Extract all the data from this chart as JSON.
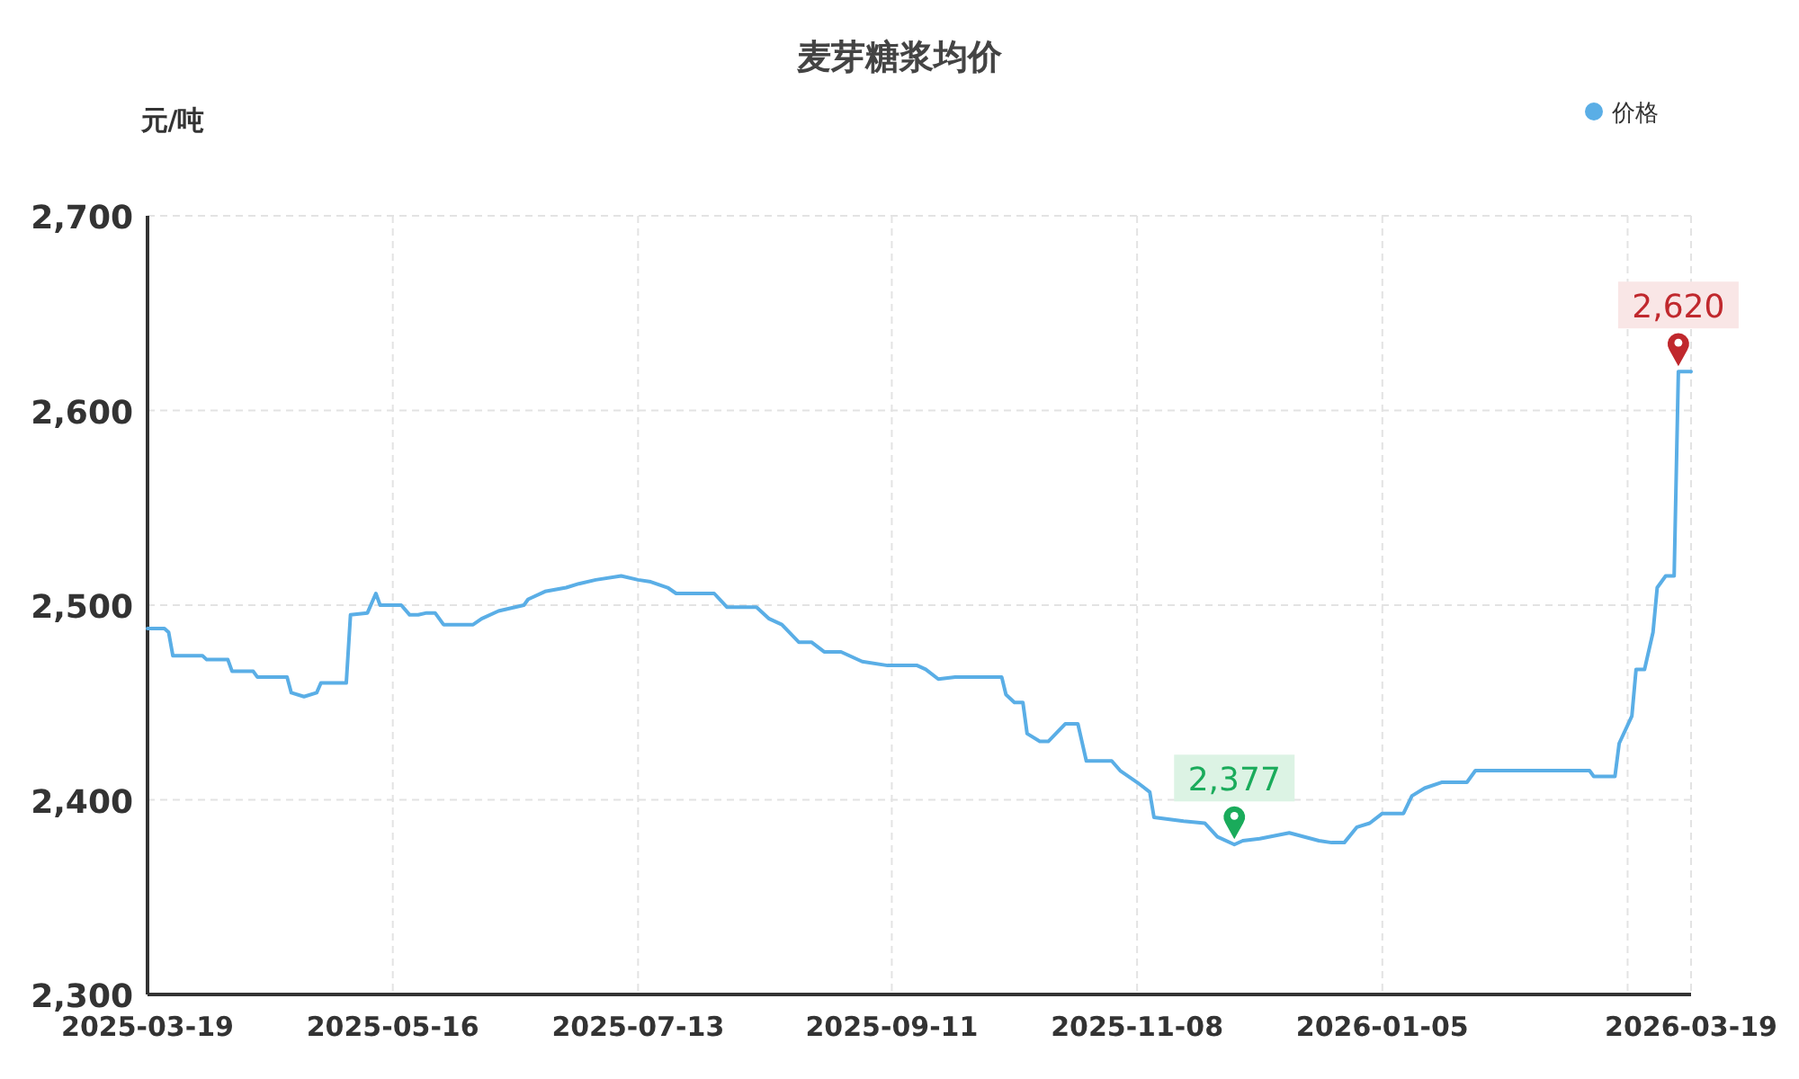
{
  "chart_data": {
    "type": "line",
    "title": "麦芽糖浆均价",
    "ylabel": "元/吨",
    "legend": "top right",
    "grid": true,
    "xlim": [
      "2025-03-19",
      "2026-03-19"
    ],
    "xticks": [
      {
        "value": "2025-03-19",
        "label": "2025-03-19"
      },
      {
        "value": "2025-05-16",
        "label": "2025-05-16"
      },
      {
        "value": "2025-07-13",
        "label": "2025-07-13"
      },
      {
        "value": "2025-09-11",
        "label": "2025-09-11"
      },
      {
        "value": "2025-11-08",
        "label": "2025-11-08"
      },
      {
        "value": "2026-01-05",
        "label": "2026-01-05"
      },
      {
        "value": "2026-03-04",
        "label": null
      },
      {
        "value": "2026-03-19",
        "label": "2026-03-19"
      }
    ],
    "ylim": [
      2300,
      2700
    ],
    "yticks": [
      {
        "value": 2300,
        "label": "2,300"
      },
      {
        "value": 2400,
        "label": "2,400"
      },
      {
        "value": 2500,
        "label": "2,500"
      },
      {
        "value": 2600,
        "label": "2,600"
      },
      {
        "value": 2700,
        "label": "2,700"
      }
    ],
    "x": [
      "2025-03-19",
      "2025-03-23",
      "2025-03-24",
      "2025-03-25",
      "2025-04-01",
      "2025-04-02",
      "2025-04-07",
      "2025-04-08",
      "2025-04-13",
      "2025-04-14",
      "2025-04-21",
      "2025-04-22",
      "2025-04-25",
      "2025-04-28",
      "2025-04-29",
      "2025-05-05",
      "2025-05-06",
      "2025-05-10",
      "2025-05-12",
      "2025-05-13",
      "2025-05-18",
      "2025-05-20",
      "2025-05-22",
      "2025-05-24",
      "2025-05-26",
      "2025-05-28",
      "2025-06-04",
      "2025-06-06",
      "2025-06-10",
      "2025-06-16",
      "2025-06-17",
      "2025-06-21",
      "2025-06-26",
      "2025-06-29",
      "2025-07-03",
      "2025-07-09",
      "2025-07-13",
      "2025-07-16",
      "2025-07-20",
      "2025-07-22",
      "2025-07-31",
      "2025-08-03",
      "2025-08-10",
      "2025-08-13",
      "2025-08-16",
      "2025-08-20",
      "2025-08-23",
      "2025-08-26",
      "2025-08-30",
      "2025-09-04",
      "2025-09-10",
      "2025-09-17",
      "2025-09-19",
      "2025-09-22",
      "2025-09-26",
      "2025-10-07",
      "2025-10-08",
      "2025-10-10",
      "2025-10-12",
      "2025-10-13",
      "2025-10-16",
      "2025-10-18",
      "2025-10-22",
      "2025-10-25",
      "2025-10-27",
      "2025-11-02",
      "2025-11-04",
      "2025-11-06",
      "2025-11-08",
      "2025-11-11",
      "2025-11-12",
      "2025-11-19",
      "2025-11-24",
      "2025-11-27",
      "2025-12-01",
      "2025-12-03",
      "2025-12-07",
      "2025-12-14",
      "2025-12-21",
      "2025-12-24",
      "2025-12-27",
      "2025-12-30",
      "2026-01-02",
      "2026-01-05",
      "2026-01-10",
      "2026-01-12",
      "2026-01-15",
      "2026-01-19",
      "2026-01-25",
      "2026-01-27",
      "2026-02-23",
      "2026-02-24",
      "2026-03-01",
      "2026-03-02",
      "2026-03-05",
      "2026-03-06",
      "2026-03-08",
      "2026-03-10",
      "2026-03-11",
      "2026-03-13",
      "2026-03-15",
      "2026-03-16",
      "2026-03-19"
    ],
    "series": [
      {
        "name": "价格",
        "color": "#5aaee6",
        "values": [
          2488,
          2488,
          2486,
          2474,
          2474,
          2472,
          2472,
          2466,
          2466,
          2463,
          2463,
          2455,
          2453,
          2455,
          2460,
          2460,
          2495,
          2496,
          2506,
          2500,
          2500,
          2495,
          2495,
          2496,
          2496,
          2490,
          2490,
          2493,
          2497,
          2500,
          2503,
          2507,
          2509,
          2511,
          2513,
          2515,
          2513,
          2512,
          2509,
          2506,
          2506,
          2499,
          2499,
          2493,
          2490,
          2481,
          2481,
          2476,
          2476,
          2471,
          2469,
          2469,
          2467,
          2462,
          2463,
          2463,
          2454,
          2450,
          2450,
          2434,
          2430,
          2430,
          2439,
          2439,
          2420,
          2420,
          2415,
          2412,
          2409,
          2404,
          2391,
          2389,
          2388,
          2381,
          2377,
          2379,
          2380,
          2383,
          2379,
          2378,
          2378,
          2386,
          2388,
          2393,
          2393,
          2402,
          2406,
          2409,
          2409,
          2415,
          2415,
          2412,
          2412,
          2429,
          2443,
          2467,
          2467,
          2486,
          2509,
          2515,
          2515,
          2620,
          2620
        ]
      }
    ],
    "annotations": [
      {
        "text": "2,377",
        "x": "2025-12-01",
        "y": 2377
      },
      {
        "text": "2,620",
        "x": "2026-03-16",
        "y": 2620
      }
    ]
  }
}
